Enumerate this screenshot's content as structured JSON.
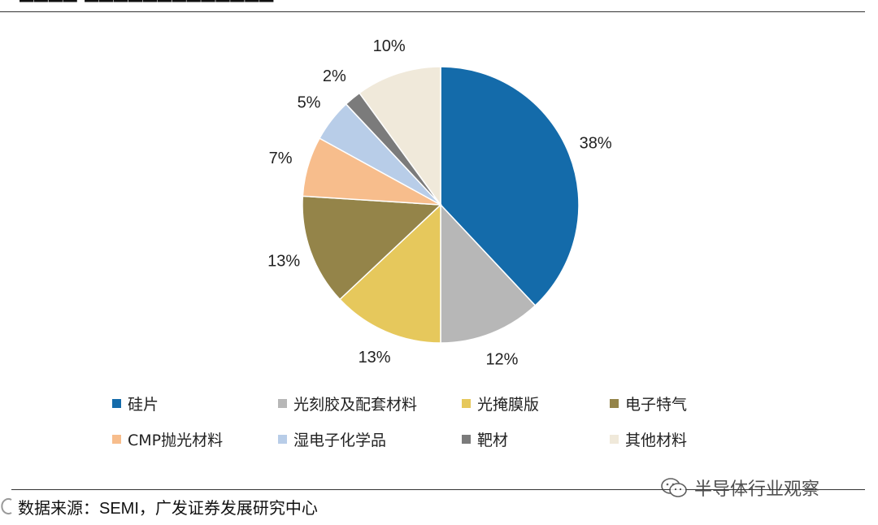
{
  "source": {
    "label": "数据来源：",
    "text": "SEMI，广发证券发展研究中心"
  },
  "watermark": {
    "text": "半导体行业观察",
    "icon": "wechat-icon"
  },
  "chart_data": {
    "type": "pie",
    "title": "",
    "slices": [
      {
        "label": "硅片",
        "value": 38,
        "display": "38%",
        "color": "#146BAA"
      },
      {
        "label": "光刻胶及配套材料",
        "value": 12,
        "display": "12%",
        "color": "#B7B7B7"
      },
      {
        "label": "光掩膜版",
        "value": 13,
        "display": "13%",
        "color": "#E6C85C"
      },
      {
        "label": "电子特气",
        "value": 13,
        "display": "13%",
        "color": "#948449"
      },
      {
        "label": "CMP抛光材料",
        "value": 7,
        "display": "7%",
        "color": "#F7BD8C"
      },
      {
        "label": "湿电子化学品",
        "value": 5,
        "display": "5%",
        "color": "#B8CDE8"
      },
      {
        "label": "靶材",
        "value": 2,
        "display": "2%",
        "color": "#7B7B7B"
      },
      {
        "label": "其他材料",
        "value": 10,
        "display": "10%",
        "color": "#F0E9DA"
      }
    ],
    "start_angle": "12 o'clock, clockwise",
    "legend_position": "bottom"
  }
}
